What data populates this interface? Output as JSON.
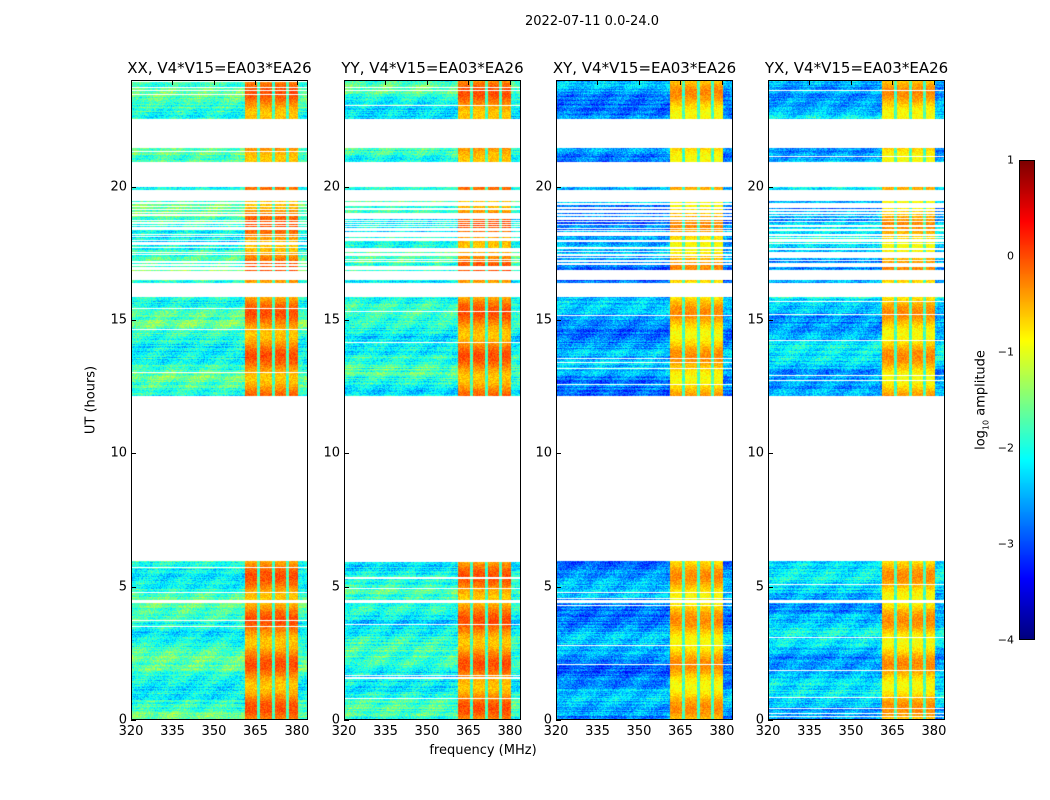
{
  "suptitle": "2022-07-11 0.0-24.0",
  "chart_data": {
    "type": "heatmap",
    "xlabel": "frequency (MHz)",
    "ylabel": "UT (hours)",
    "xlim": [
      320,
      384
    ],
    "ylim": [
      0,
      24
    ],
    "xticks": [
      320,
      335,
      350,
      365,
      380
    ],
    "yticks": [
      0,
      5,
      10,
      15,
      20
    ],
    "colorbar": {
      "label": "log10 amplitude",
      "label_main": "log",
      "label_sub": "10",
      "label_rest": " amplitude",
      "range": [
        -4,
        1
      ],
      "ticks": [
        1,
        0,
        -1,
        -2,
        -3,
        -4
      ],
      "tick_labels": [
        "1",
        "0",
        "−1",
        "−2",
        "−3",
        "−4"
      ],
      "colormap": "jet"
    },
    "data_segments_hours": [
      [
        0,
        4.45
      ],
      [
        4.55,
        6.0
      ],
      [
        12.2,
        15.9
      ],
      [
        16.45,
        16.55
      ],
      [
        16.9,
        19.5
      ],
      [
        19.95,
        20.05
      ],
      [
        21.0,
        21.5
      ],
      [
        22.6,
        24.0
      ]
    ],
    "sparse_segment_hours": [
      16.9,
      19.5
    ],
    "rfi_band_mhz": [
      360.5,
      380
    ],
    "rfi_band_level": -0.4,
    "rfi_gap_mhz": [
      [
        365,
        366
      ],
      [
        370.5,
        371.5
      ],
      [
        375.5,
        376.5
      ]
    ],
    "panels": [
      {
        "title": "XX, V4*V15=EA03*EA26",
        "background_level": -1.9
      },
      {
        "title": "YY, V4*V15=EA03*EA26",
        "background_level": -2.0
      },
      {
        "title": "XY, V4*V15=EA03*EA26",
        "background_level": -2.6
      },
      {
        "title": "YX, V4*V15=EA03*EA26",
        "background_level": -2.4
      }
    ]
  }
}
